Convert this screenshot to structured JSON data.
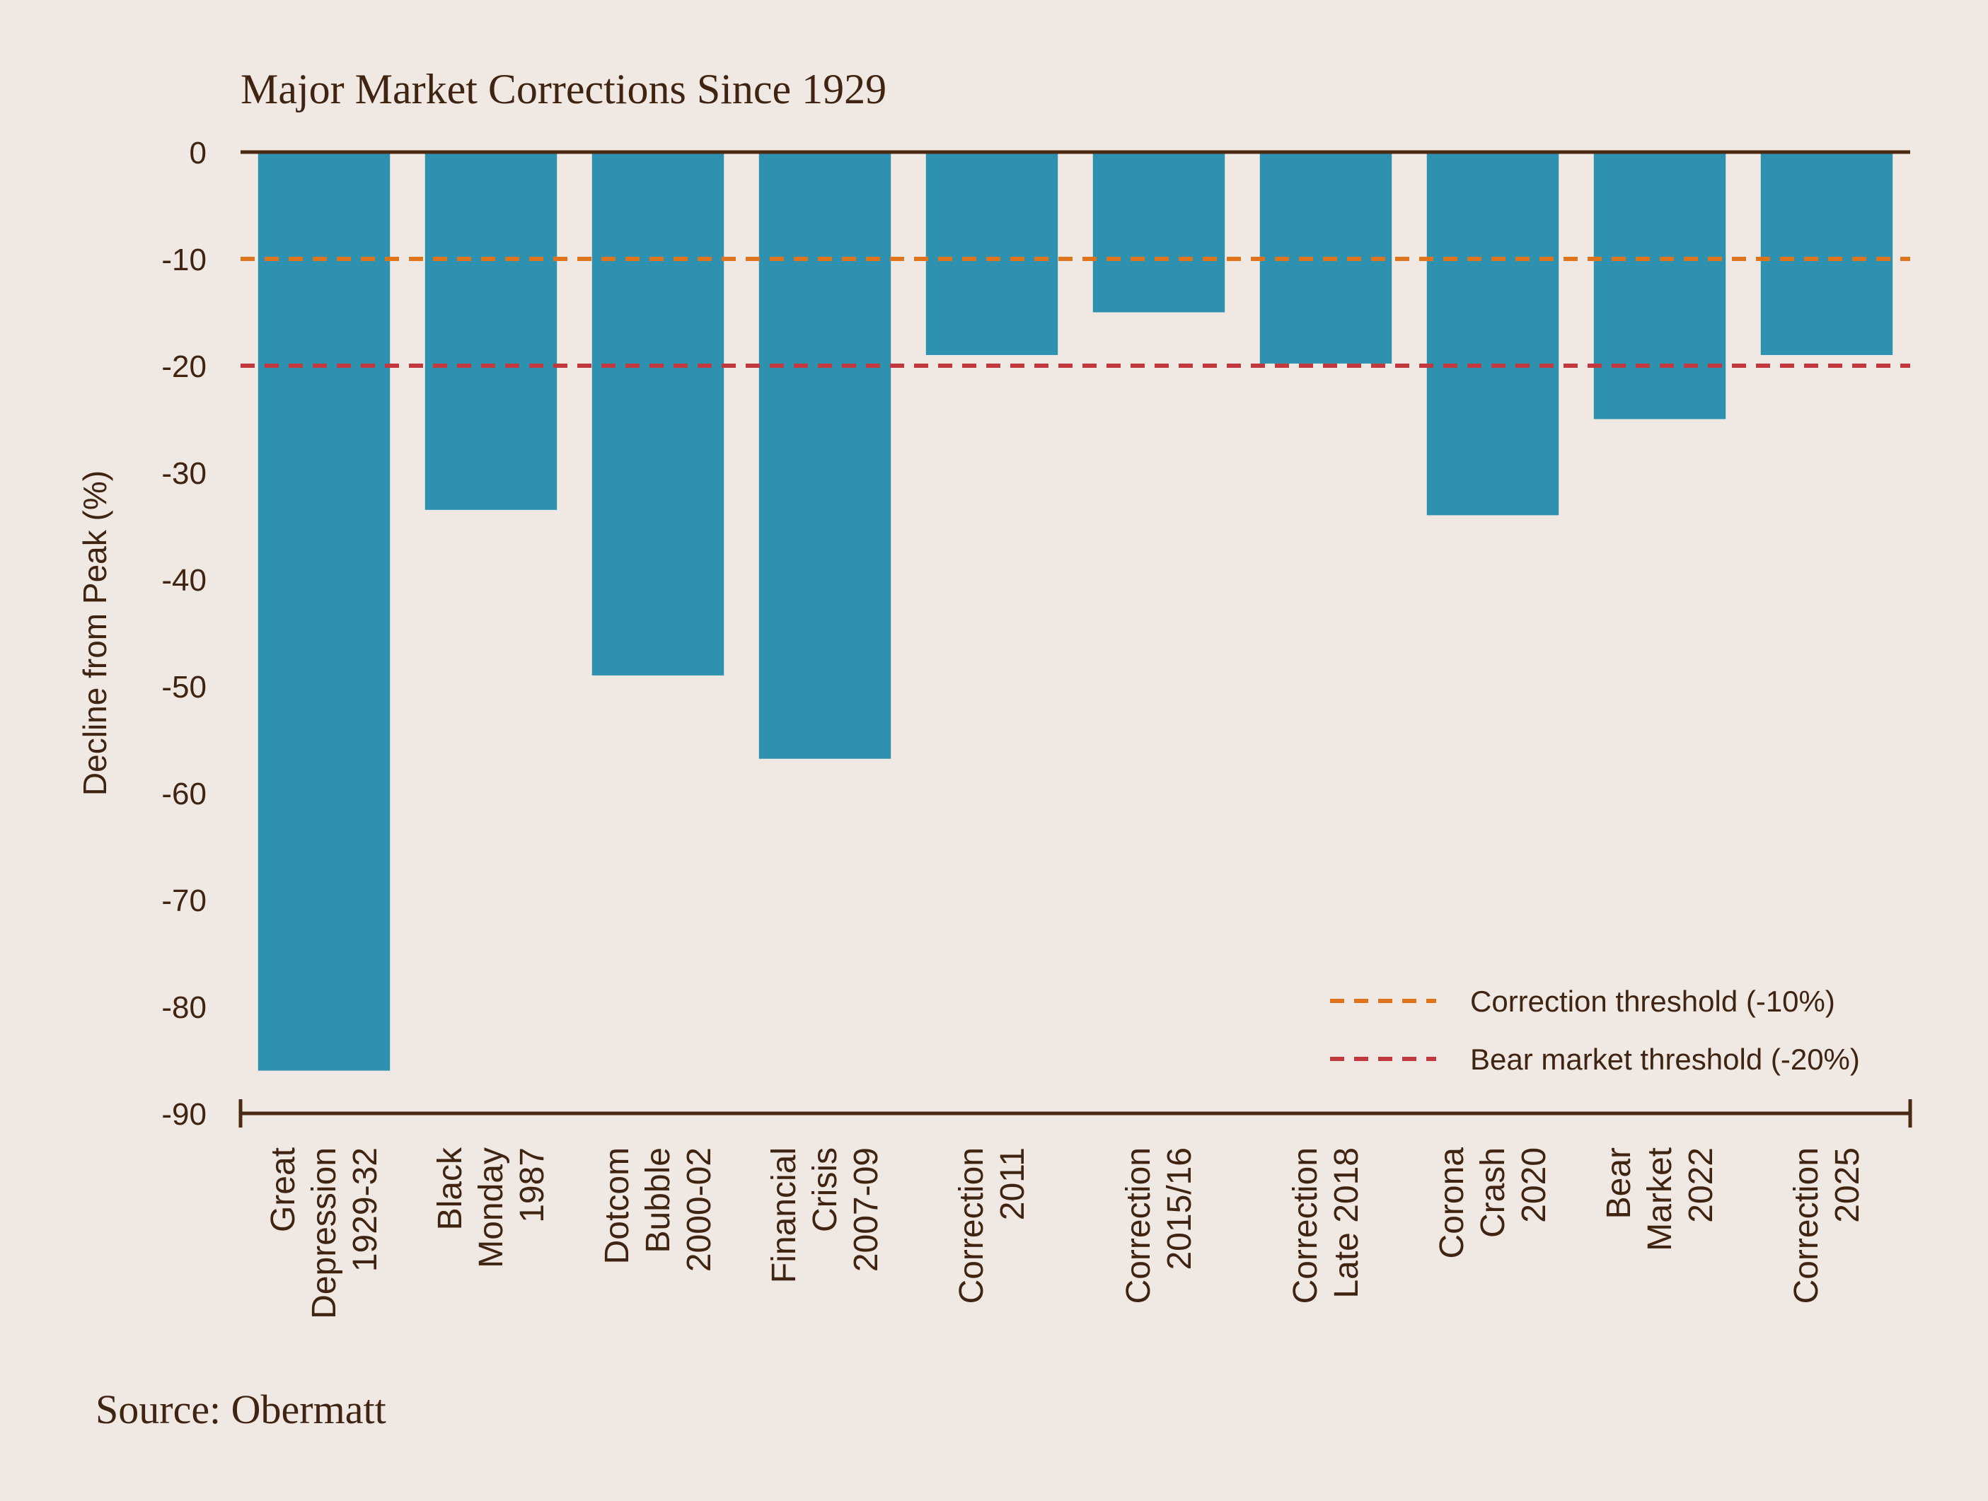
{
  "colors": {
    "background": "#f0e8e2",
    "bar": "#2e91b0",
    "axis": "#4a2a12",
    "text": "#3f2412",
    "correction_line": "#e0741c",
    "bear_line": "#c1383f"
  },
  "source": "Source: Obermatt",
  "chart_data": {
    "type": "bar",
    "title": "Major Market Corrections Since 1929",
    "ylabel": "Decline from Peak (%)",
    "xlabel": "",
    "ylim": [
      -90,
      0
    ],
    "yticks": [
      0,
      -10,
      -20,
      -30,
      -40,
      -50,
      -60,
      -70,
      -80,
      -90
    ],
    "grid": false,
    "legend_position": "bottom-right",
    "categories": [
      [
        "Great",
        "Depression",
        "1929-32"
      ],
      [
        "Black",
        "Monday",
        "1987"
      ],
      [
        "Dotcom",
        "Bubble",
        "2000-02"
      ],
      [
        "Financial",
        "Crisis",
        "2007-09"
      ],
      [
        "Correction",
        "2011"
      ],
      [
        "Correction",
        "2015/16"
      ],
      [
        "Correction",
        "Late 2018"
      ],
      [
        "Corona",
        "Crash",
        "2020"
      ],
      [
        "Bear",
        "Market",
        "2022"
      ],
      [
        "Correction",
        "2025"
      ]
    ],
    "values": [
      -86,
      -33.5,
      -49,
      -56.8,
      -19,
      -15,
      -19.8,
      -34,
      -25,
      -19
    ],
    "reference_lines": [
      {
        "label": "Correction threshold (-10%)",
        "y": -10,
        "color": "#e0741c"
      },
      {
        "label": "Bear market threshold (-20%)",
        "y": -20,
        "color": "#c1383f"
      }
    ]
  }
}
